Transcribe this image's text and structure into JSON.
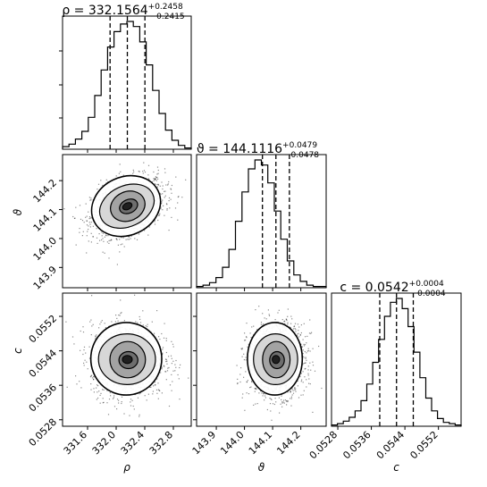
{
  "chart_data": {
    "type": "corner",
    "parameters": [
      {
        "name": "ρ",
        "title": {
          "prefix": "ρ = 332.1564",
          "sup": "+0.2458",
          "sub": "−0.2415"
        },
        "median": 332.1564,
        "q16": 331.9149,
        "q84": 332.4022,
        "range": [
          331.25,
          333.05
        ],
        "ticks": [
          331.6,
          332.0,
          332.4,
          332.8
        ],
        "tick_labels": [
          "331.6",
          "332.0",
          "332.4",
          "332.8"
        ],
        "hist_counts": [
          2,
          4,
          8,
          14,
          25,
          42,
          62,
          80,
          92,
          98,
          100,
          96,
          84,
          66,
          46,
          28,
          15,
          7,
          3,
          1
        ]
      },
      {
        "name": "ϑ",
        "title": {
          "prefix": "ϑ = 144.1116",
          "sup": "+0.0479",
          "sub": "−0.0478"
        },
        "median": 144.1116,
        "q16": 144.0638,
        "q84": 144.1595,
        "range": [
          143.83,
          144.29
        ],
        "ticks": [
          143.9,
          144.0,
          144.1,
          144.2
        ],
        "tick_labels": [
          "143.9",
          "144.0",
          "144.1",
          "144.2"
        ],
        "hist_counts": [
          1,
          2,
          4,
          8,
          16,
          30,
          52,
          75,
          93,
          100,
          96,
          82,
          60,
          38,
          21,
          10,
          5,
          2,
          1,
          1
        ]
      },
      {
        "name": "c",
        "title": {
          "prefix": "c = 0.0542",
          "sup": "+0.0004",
          "sub": "−0.0004"
        },
        "median": 0.0542,
        "q16": 0.0538,
        "q84": 0.0546,
        "range": [
          0.05265,
          0.05574
        ],
        "ticks": [
          0.0528,
          0.0536,
          0.0544,
          0.0552
        ],
        "tick_labels": [
          "0.0528",
          "0.0536",
          "0.0544",
          "0.0552"
        ],
        "hist_counts": [
          1,
          2,
          4,
          7,
          12,
          20,
          33,
          50,
          68,
          86,
          97,
          100,
          92,
          78,
          58,
          38,
          22,
          12,
          6,
          3,
          2,
          1
        ]
      }
    ],
    "axis_labels": {
      "x": [
        "ρ",
        "ϑ",
        "c"
      ],
      "y": [
        "ϑ",
        "c"
      ]
    },
    "contour_levels_sigma": [
      0.5,
      1.0,
      1.5,
      2.0
    ],
    "grid": false,
    "legend": "none"
  }
}
